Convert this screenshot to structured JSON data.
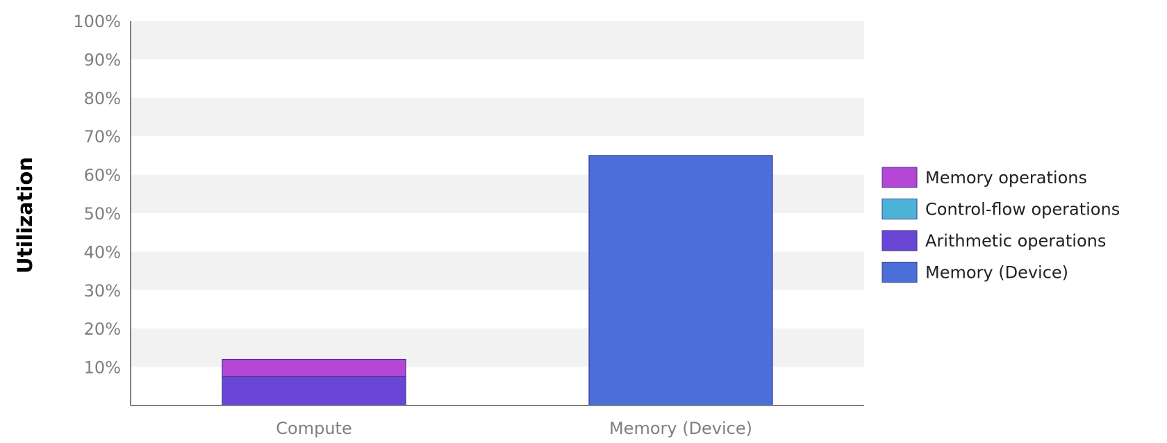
{
  "chart_data": {
    "type": "bar",
    "stacked": true,
    "title": "",
    "xlabel": "",
    "ylabel": "Utilization",
    "categories": [
      "Compute",
      "Memory (Device)"
    ],
    "ylim": [
      0,
      100
    ],
    "yticks": [
      "10%",
      "20%",
      "30%",
      "40%",
      "50%",
      "60%",
      "70%",
      "80%",
      "90%",
      "100%"
    ],
    "grid": "alternating horizontal bands",
    "legend": "right",
    "series": [
      {
        "name": "Arithmetic operations",
        "values": [
          7.5,
          0
        ],
        "color": "#6b46d6"
      },
      {
        "name": "Control-flow operations",
        "values": [
          0,
          0
        ],
        "color": "#4ab3d6"
      },
      {
        "name": "Memory operations",
        "values": [
          4.5,
          0
        ],
        "color": "#b546d6"
      },
      {
        "name": "Memory (Device)",
        "values": [
          0,
          65
        ],
        "color": "#4a6fd8"
      }
    ],
    "legend_order": [
      "Memory operations",
      "Control-flow operations",
      "Arithmetic operations",
      "Memory (Device)"
    ]
  }
}
